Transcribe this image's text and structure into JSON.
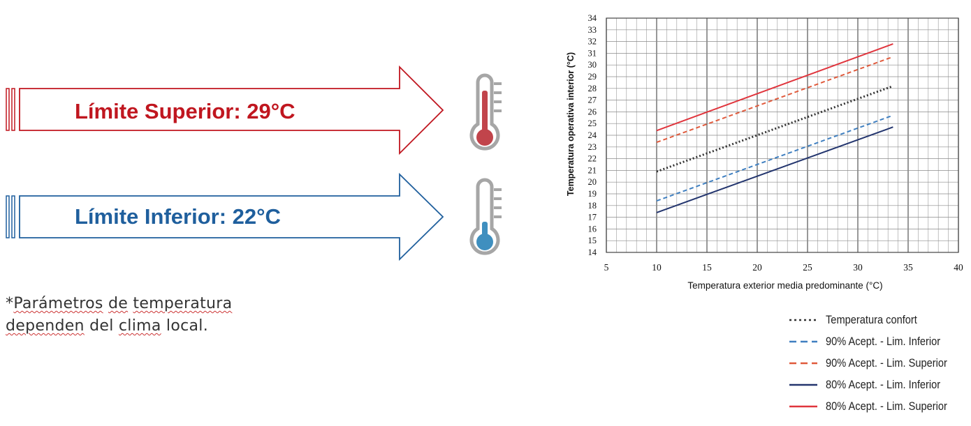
{
  "left_panel": {
    "upper_limit_label": "Límite Superior: 29°C",
    "lower_limit_label": "Límite Inferior: 22°C",
    "note_parts": [
      "*",
      "Parámetros",
      " ",
      "de",
      " ",
      "temperatura"
    ],
    "note_line2_parts": [
      "dependen",
      " del ",
      "clima",
      " local."
    ],
    "colors": {
      "upper": "#c0161f",
      "lower": "#1f5f9d",
      "hot_bulb": "#c1444b",
      "cold_bulb": "#3f8fbf"
    },
    "icons": [
      "thermometer-hot-icon",
      "thermometer-cold-icon",
      "arrow-right-icon"
    ]
  },
  "chart_data": {
    "type": "line",
    "title": "",
    "xlabel": "Temperatura exterior media predominante (°C)",
    "ylabel": "Temperatura operativa interior (°C)",
    "xlim": [
      5,
      40
    ],
    "ylim": [
      14,
      34
    ],
    "x_ticks": [
      5,
      10,
      15,
      20,
      25,
      30,
      35,
      40
    ],
    "y_ticks": [
      14,
      15,
      16,
      17,
      18,
      19,
      20,
      21,
      22,
      23,
      24,
      25,
      26,
      27,
      28,
      29,
      30,
      31,
      32,
      33,
      34
    ],
    "grid": true,
    "legend_position": "bottom-right, below plot",
    "series": [
      {
        "name": "Temperatura confort",
        "color": "#333333",
        "style": "dotted",
        "x": [
          10,
          33.5
        ],
        "y": [
          20.9,
          28.2
        ]
      },
      {
        "name": "90% Acept. - Lim. Inferior",
        "color": "#3f7fc0",
        "style": "dashed",
        "x": [
          10,
          33.5
        ],
        "y": [
          18.4,
          25.7
        ]
      },
      {
        "name": "90% Acept. - Lim. Superior",
        "color": "#e05a3c",
        "style": "dashed",
        "x": [
          10,
          33.5
        ],
        "y": [
          23.4,
          30.7
        ]
      },
      {
        "name": "80% Acept. - Lim. Inferior",
        "color": "#23356e",
        "style": "solid",
        "x": [
          10,
          33.5
        ],
        "y": [
          17.4,
          24.7
        ]
      },
      {
        "name": "80% Acept. - Lim. Superior",
        "color": "#e0353d",
        "style": "solid",
        "x": [
          10,
          33.5
        ],
        "y": [
          24.4,
          31.8
        ]
      }
    ]
  }
}
